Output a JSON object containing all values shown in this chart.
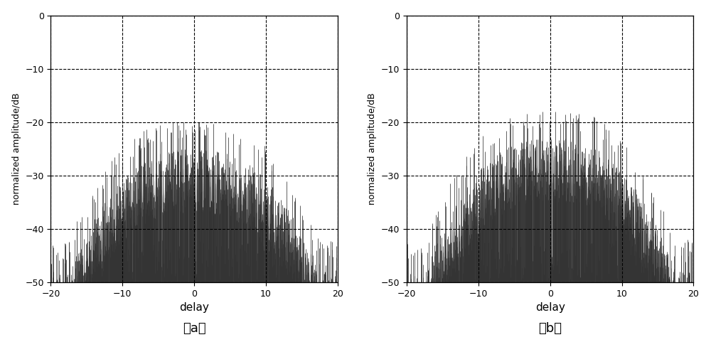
{
  "xlim": [
    -20,
    20
  ],
  "ylim": [
    -50,
    0
  ],
  "xticks": [
    -20,
    -10,
    0,
    10,
    20
  ],
  "yticks": [
    0,
    -10,
    -20,
    -30,
    -40,
    -50
  ],
  "xlabel": "delay",
  "ylabel": "normalized amplitude/dB",
  "subplot_labels": [
    "（a）",
    "（b）"
  ],
  "signal_color": "#333333",
  "bg_color": "#ffffff",
  "figsize": [
    10.0,
    4.88
  ],
  "dpi": 100,
  "noise_floor": -50,
  "peak_level_a": -25,
  "peak_level_b": -23,
  "n_vlines": 1200,
  "seed_a": 10,
  "seed_b": 20
}
